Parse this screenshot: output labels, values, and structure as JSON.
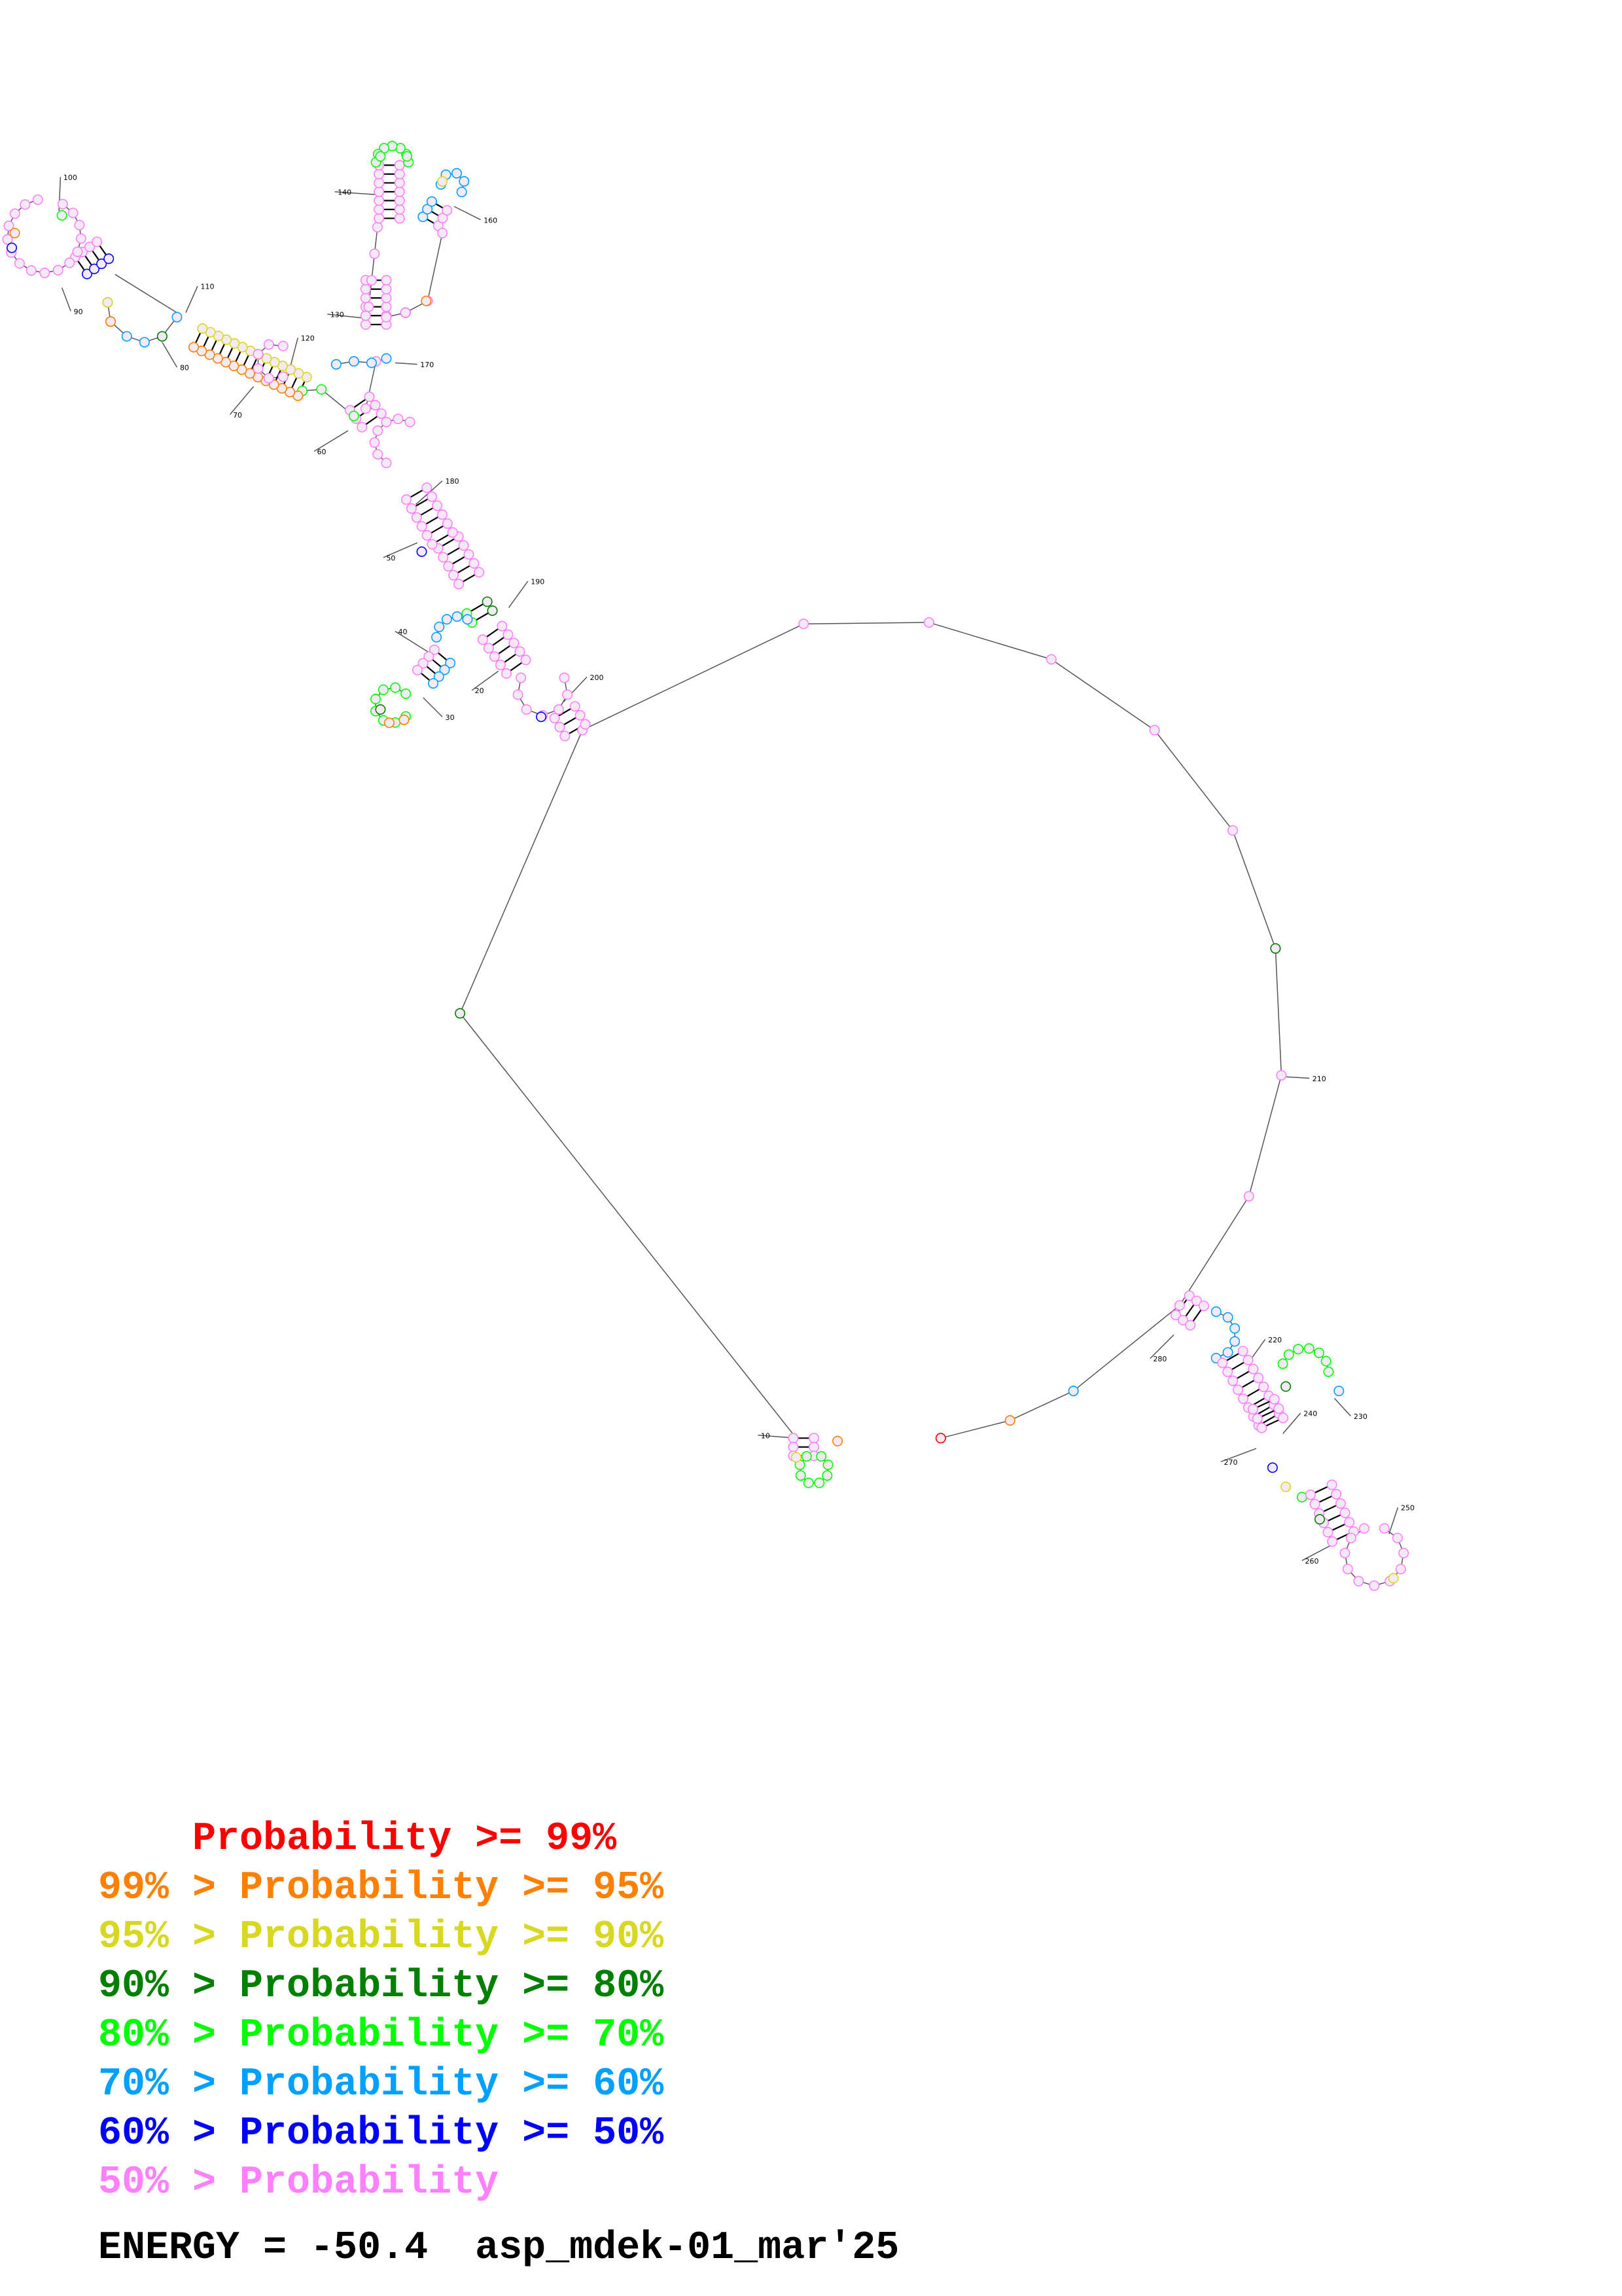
{
  "diagram": {
    "position_labels": [
      "10",
      "20",
      "30",
      "40",
      "50",
      "60",
      "70",
      "80",
      "90",
      "100",
      "110",
      "120",
      "130",
      "140",
      "160",
      "170",
      "180",
      "190",
      "200",
      "210",
      "220",
      "230",
      "240",
      "250",
      "260",
      "270",
      "280"
    ]
  },
  "legend": [
    {
      "prefix": "    ",
      "text": "Probability >= 99%",
      "color": "#ff0000"
    },
    {
      "prefix": "99% > ",
      "text": "Probability >= 95%",
      "color": "#ff8000"
    },
    {
      "prefix": "95% > ",
      "text": "Probability >= 90%",
      "color": "#d8d820"
    },
    {
      "prefix": "90% > ",
      "text": "Probability >= 80%",
      "color": "#008000"
    },
    {
      "prefix": "80% > ",
      "text": "Probability >= 70%",
      "color": "#00ff00"
    },
    {
      "prefix": "70% > ",
      "text": "Probability >= 60%",
      "color": "#00a0ff"
    },
    {
      "prefix": "60% > ",
      "text": "Probability >= 50%",
      "color": "#0000ff"
    },
    {
      "prefix": "50% > ",
      "text": "Probability",
      "color": "#ff80ff"
    }
  ],
  "footer": {
    "energy_label": "ENERGY = -50.4",
    "sequence_name": "asp_mdek-01_mar'25"
  }
}
